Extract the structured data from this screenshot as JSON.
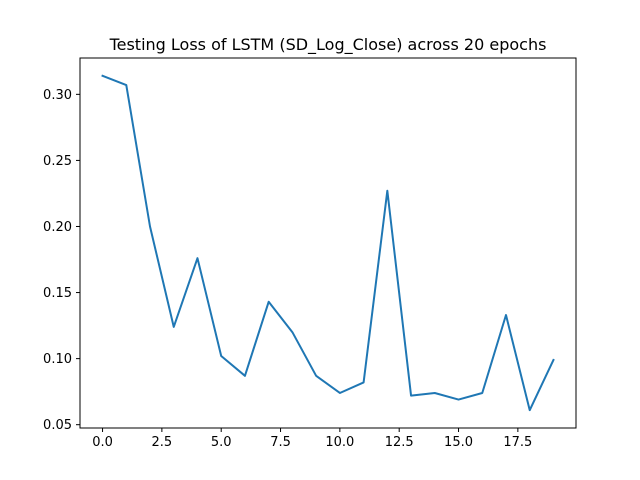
{
  "chart_data": {
    "type": "line",
    "title": "Testing Loss of LSTM (SD_Log_Close) across 20 epochs",
    "xlabel": "",
    "ylabel": "",
    "xlim": [
      -0.95,
      19.95
    ],
    "ylim": [
      0.0475,
      0.3275
    ],
    "grid": false,
    "x_ticks": [
      0,
      2.5,
      5,
      7.5,
      10,
      12.5,
      15,
      17.5
    ],
    "x_tick_labels": [
      "0.0",
      "2.5",
      "5.0",
      "7.5",
      "10.0",
      "12.5",
      "15.0",
      "17.5"
    ],
    "y_ticks": [
      0.05,
      0.1,
      0.15,
      0.2,
      0.25,
      0.3
    ],
    "y_tick_labels": [
      "0.05",
      "0.10",
      "0.15",
      "0.20",
      "0.25",
      "0.30"
    ],
    "series": [
      {
        "name": "Testing Loss",
        "color": "#1f77b4",
        "x": [
          0,
          1,
          2,
          3,
          4,
          5,
          6,
          7,
          8,
          9,
          10,
          11,
          12,
          13,
          14,
          15,
          16,
          17,
          18,
          19
        ],
        "y": [
          0.314,
          0.307,
          0.2,
          0.124,
          0.176,
          0.102,
          0.087,
          0.143,
          0.12,
          0.087,
          0.074,
          0.082,
          0.227,
          0.072,
          0.074,
          0.069,
          0.074,
          0.133,
          0.061,
          0.099
        ]
      }
    ]
  }
}
